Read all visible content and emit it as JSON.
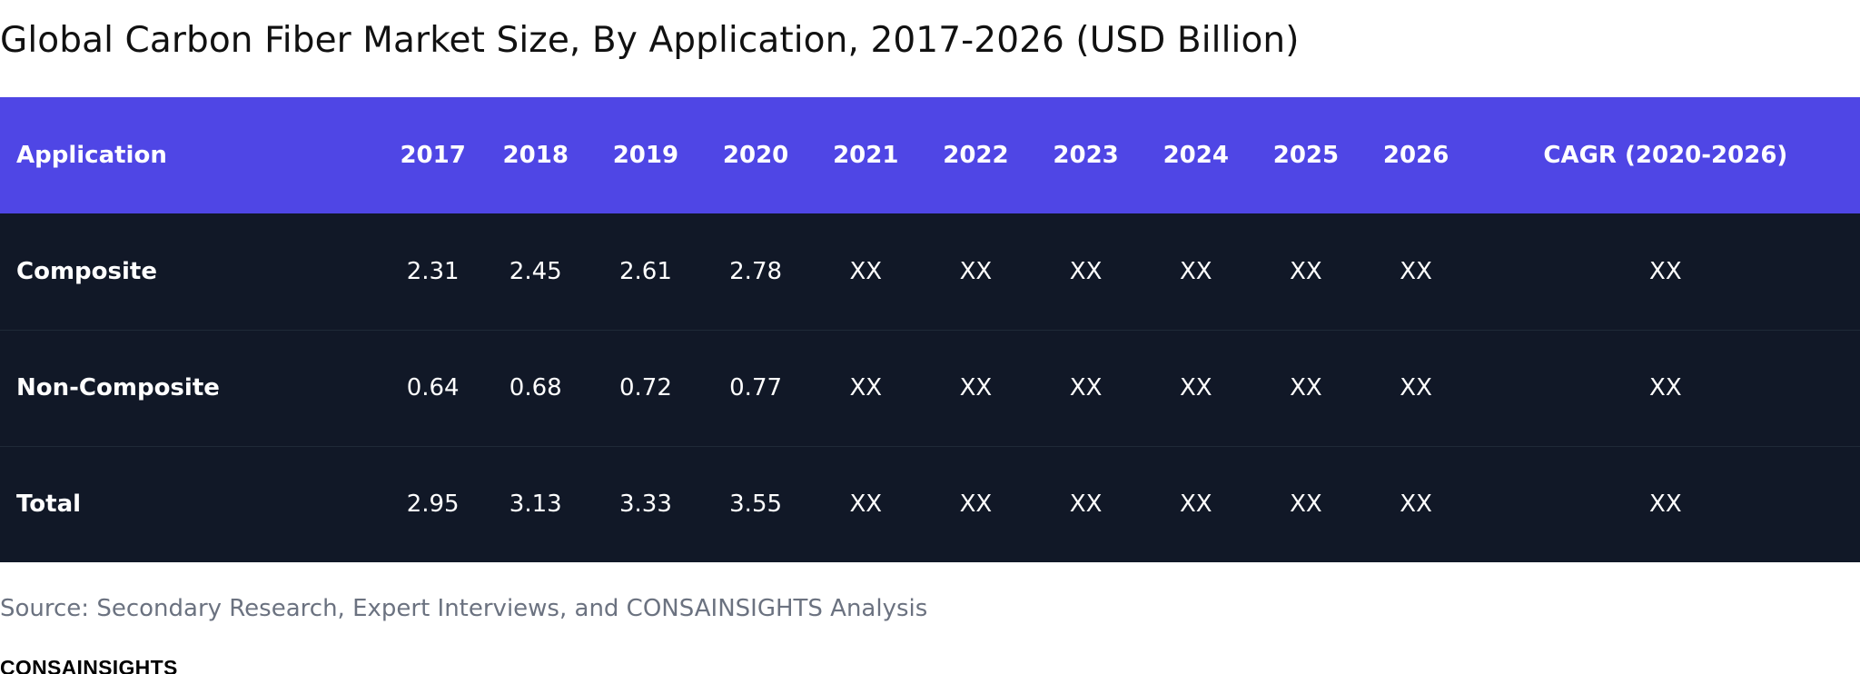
{
  "title": "Global Carbon Fiber Market Size, By Application, 2017-2026 (USD Billion)",
  "table": {
    "headers": [
      "Application",
      "2017",
      "2018",
      "2019",
      "2020",
      "2021",
      "2022",
      "2023",
      "2024",
      "2025",
      "2026",
      "CAGR (2020-2026)"
    ],
    "rows": [
      {
        "label": "Composite",
        "values": [
          "2.31",
          "2.45",
          "2.61",
          "2.78",
          "XX",
          "XX",
          "XX",
          "XX",
          "XX",
          "XX",
          "XX"
        ]
      },
      {
        "label": "Non-Composite",
        "values": [
          "0.64",
          "0.68",
          "0.72",
          "0.77",
          "XX",
          "XX",
          "XX",
          "XX",
          "XX",
          "XX",
          "XX"
        ]
      },
      {
        "label": "Total",
        "values": [
          "2.95",
          "3.13",
          "3.33",
          "3.55",
          "XX",
          "XX",
          "XX",
          "XX",
          "XX",
          "XX",
          "XX"
        ]
      }
    ]
  },
  "source": "Source: Secondary Research, Expert Interviews, and CONSAINSIGHTS Analysis",
  "brand": "CONSAINSIGHTS",
  "colors": {
    "header_bg": "#4f46e5",
    "body_bg": "#111827",
    "source_text": "#6b7280"
  }
}
